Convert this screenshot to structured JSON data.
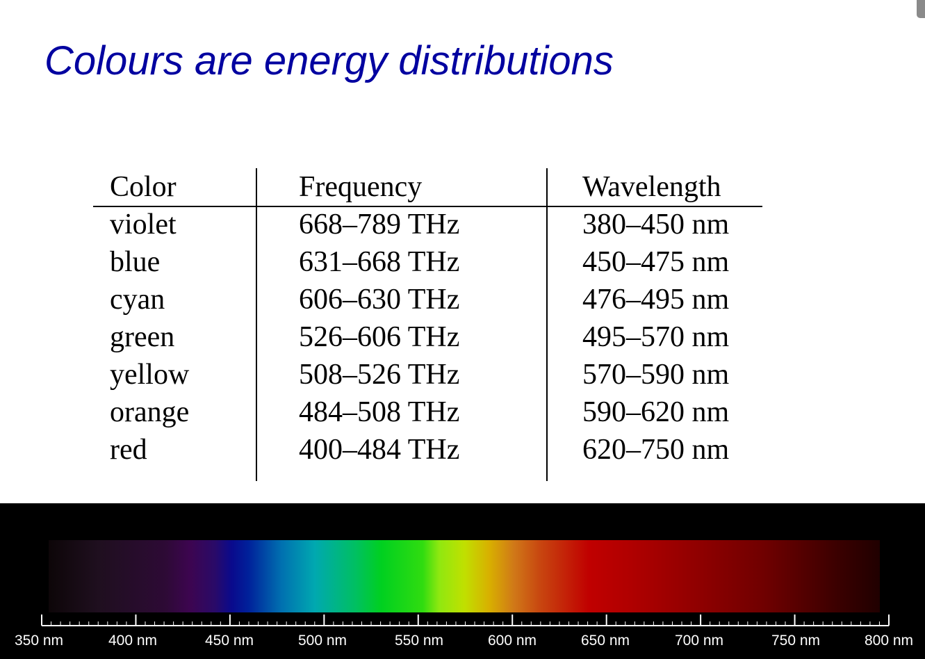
{
  "slide": {
    "title": "Colours are energy distributions",
    "title_color": "#0000a0"
  },
  "table": {
    "headers": [
      "Color",
      "Frequency",
      "Wavelength"
    ],
    "rows": [
      [
        "violet",
        "668–789 THz",
        "380–450 nm"
      ],
      [
        "blue",
        "631–668 THz",
        "450–475 nm"
      ],
      [
        "cyan",
        "606–630 THz",
        "476–495 nm"
      ],
      [
        "green",
        "526–606 THz",
        "495–570 nm"
      ],
      [
        "yellow",
        "508–526 THz",
        "570–590 nm"
      ],
      [
        "orange",
        "484–508 THz",
        "590–620 nm"
      ],
      [
        "red",
        "400–484 THz",
        "620–750 nm"
      ]
    ]
  },
  "spectrum": {
    "range_nm": [
      350,
      800
    ],
    "labels": [
      "350 nm",
      "400 nm",
      "450 nm",
      "500 nm",
      "550 nm",
      "600 nm",
      "650 nm",
      "700 nm",
      "750 nm",
      "800 nm"
    ]
  }
}
